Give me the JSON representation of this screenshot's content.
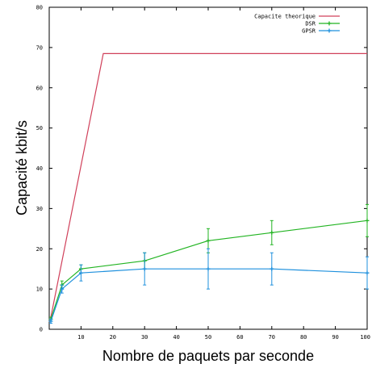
{
  "chart_data": {
    "type": "line",
    "title": "",
    "xlabel": "Nombre de paquets par seconde",
    "ylabel": "Capacité kbit/s",
    "xlim": [
      0,
      100
    ],
    "ylim": [
      0,
      80
    ],
    "xticks": [
      10,
      20,
      30,
      40,
      50,
      60,
      70,
      80,
      90,
      100
    ],
    "xtick_labels": [
      "10",
      "20",
      "30",
      "40",
      "50",
      "60",
      "70",
      "80",
      "90",
      "100"
    ],
    "yticks": [
      0,
      10,
      20,
      30,
      40,
      50,
      60,
      70,
      80
    ],
    "ytick_labels": [
      "0",
      "10",
      "20",
      "30",
      "40",
      "50",
      "60",
      "70",
      "80"
    ],
    "grid": false,
    "legend_position": "top-right",
    "series": [
      {
        "name": "Capacite theorique",
        "color": "#d0405a",
        "points": false,
        "x": [
          0.5,
          17,
          100
        ],
        "y": [
          3,
          68.5,
          68.5
        ]
      },
      {
        "name": "DSR",
        "color": "#22b422",
        "points": true,
        "x": [
          0.5,
          4,
          10,
          30,
          50,
          70,
          100
        ],
        "y": [
          2.5,
          11,
          15,
          17,
          22,
          24,
          27
        ],
        "err": [
          0.5,
          1,
          1,
          2,
          3,
          3,
          4
        ]
      },
      {
        "name": "GPSR",
        "color": "#1e90dd",
        "points": true,
        "x": [
          0.5,
          4,
          10,
          30,
          50,
          70,
          100
        ],
        "y": [
          2,
          10,
          14,
          15,
          15,
          15,
          14
        ],
        "err": [
          0.5,
          1,
          2,
          4,
          5,
          4,
          4
        ]
      }
    ]
  }
}
